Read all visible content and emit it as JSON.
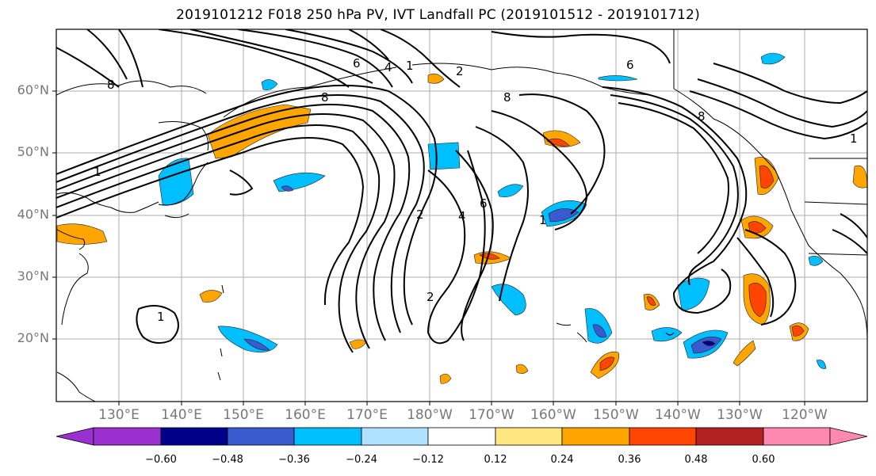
{
  "title": "2019101212 F018 250 hPa PV, IVT Landfall PC (2019101512 - 2019101712)",
  "lat_labels": [
    "60°N",
    "50°N",
    "40°N",
    "30°N",
    "20°N"
  ],
  "lon_labels": [
    "130°E",
    "140°E",
    "150°E",
    "160°E",
    "170°E",
    "180°W",
    "170°W",
    "160°W",
    "150°W",
    "140°W",
    "130°W",
    "120°W"
  ],
  "colorbar": {
    "ticks": [
      "−0.60",
      "−0.48",
      "−0.36",
      "−0.24",
      "−0.12",
      "0.12",
      "0.24",
      "0.36",
      "0.48",
      "0.60"
    ],
    "colors": [
      "#9b30d0",
      "#00008b",
      "#3a5bd0",
      "#00bfff",
      "#b0e2ff",
      "#ffffff",
      "#ffe680",
      "#ffa500",
      "#ff4500",
      "#b22222",
      "#ff88b0"
    ]
  },
  "contour_labels": [
    "1",
    "2",
    "4",
    "6",
    "8"
  ]
}
